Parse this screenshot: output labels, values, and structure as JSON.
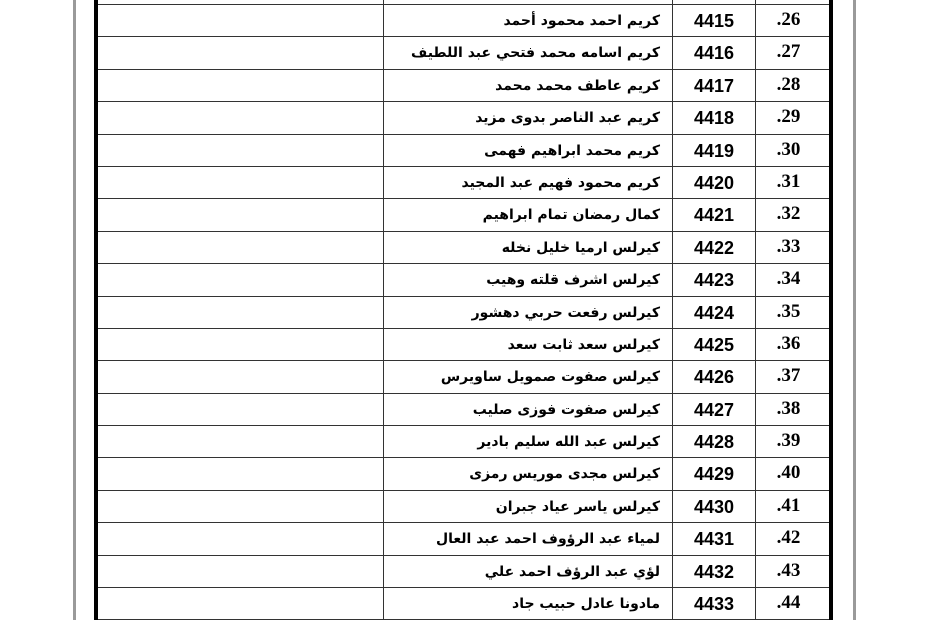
{
  "rows": [
    {
      "no": ".26",
      "id": "4415",
      "name": "كريم احمد محمود أحمد"
    },
    {
      "no": ".27",
      "id": "4416",
      "name": "كريم اسامه محمد فتحي عبد اللطيف"
    },
    {
      "no": ".28",
      "id": "4417",
      "name": "كريم عاطف محمد محمد"
    },
    {
      "no": ".29",
      "id": "4418",
      "name": "كريم عبد الناصر بدوى مزيد"
    },
    {
      "no": ".30",
      "id": "4419",
      "name": "كريم محمد ابراهيم فهمى"
    },
    {
      "no": ".31",
      "id": "4420",
      "name": "كريم محمود فهيم  عبد المجيد"
    },
    {
      "no": ".32",
      "id": "4421",
      "name": "كمال رمضان تمام ابراهيم"
    },
    {
      "no": ".33",
      "id": "4422",
      "name": "كيرلس ارميا خليل نخله"
    },
    {
      "no": ".34",
      "id": "4423",
      "name": "كيرلس اشرف قلته وهيب"
    },
    {
      "no": ".35",
      "id": "4424",
      "name": "كيرلس رفعت حربي دهشور"
    },
    {
      "no": ".36",
      "id": "4425",
      "name": "كيرلس سعد ثابت سعد"
    },
    {
      "no": ".37",
      "id": "4426",
      "name": "كيرلس صفوت صمويل ساويرس"
    },
    {
      "no": ".38",
      "id": "4427",
      "name": "كيرلس صفوت فوزى صليب"
    },
    {
      "no": ".39",
      "id": "4428",
      "name": "كيرلس عبد الله سليم بادير"
    },
    {
      "no": ".40",
      "id": "4429",
      "name": "كيرلس مجدى موريس رمزى"
    },
    {
      "no": ".41",
      "id": "4430",
      "name": "كيرلس ياسر عياد جبران"
    },
    {
      "no": ".42",
      "id": "4431",
      "name": "لمياء عبد الرؤوف احمد عبد العال"
    },
    {
      "no": ".43",
      "id": "4432",
      "name": "لؤي عبد الرؤف احمد علي"
    },
    {
      "no": ".44",
      "id": "4433",
      "name": "مادونا عادل حبيب جاد"
    }
  ]
}
